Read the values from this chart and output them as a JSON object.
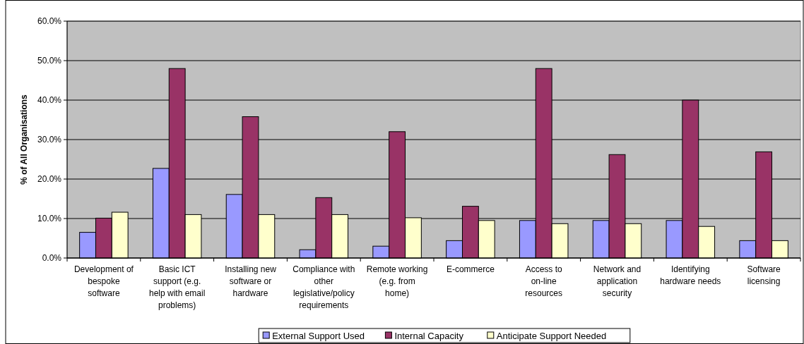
{
  "chart_data": {
    "type": "bar",
    "ylabel": "% of All Organisations",
    "categories": [
      "Development of bespoke software",
      "Basic ICT support (e.g. help with email problems)",
      "Installing new software or hardware",
      "Compliance with other legislative/policy requirements",
      "Remote working (e.g. from home)",
      "E-commerce",
      "Access to on-line resources",
      "Network and application security",
      "Identifying hardware needs",
      "Software licensing"
    ],
    "series": [
      {
        "name": "External Support Used",
        "color": "#9999ff",
        "values": [
          6.5,
          22.7,
          16.1,
          2.1,
          3.0,
          4.4,
          9.5,
          9.5,
          9.5,
          4.4
        ]
      },
      {
        "name": "Internal Capacity",
        "color": "#993366",
        "values": [
          10.1,
          48.0,
          35.8,
          15.3,
          32.0,
          13.1,
          48.0,
          26.2,
          40.0,
          26.9
        ]
      },
      {
        "name": "Anticipate Support Needed",
        "color": "#ffffcc",
        "values": [
          11.6,
          11.0,
          11.0,
          11.0,
          10.2,
          9.5,
          8.7,
          8.7,
          8.0,
          4.4
        ]
      }
    ],
    "ylim": [
      0,
      60
    ],
    "yticks": [
      {
        "value": 0,
        "label": "0.0%"
      },
      {
        "value": 10,
        "label": "10.0%"
      },
      {
        "value": 20,
        "label": "20.0%"
      },
      {
        "value": 30,
        "label": "30.0%"
      },
      {
        "value": 40,
        "label": "40.0%"
      },
      {
        "value": 50,
        "label": "50.0%"
      },
      {
        "value": 60,
        "label": "60.0%"
      }
    ],
    "grid": "y",
    "legend": "bottom"
  }
}
